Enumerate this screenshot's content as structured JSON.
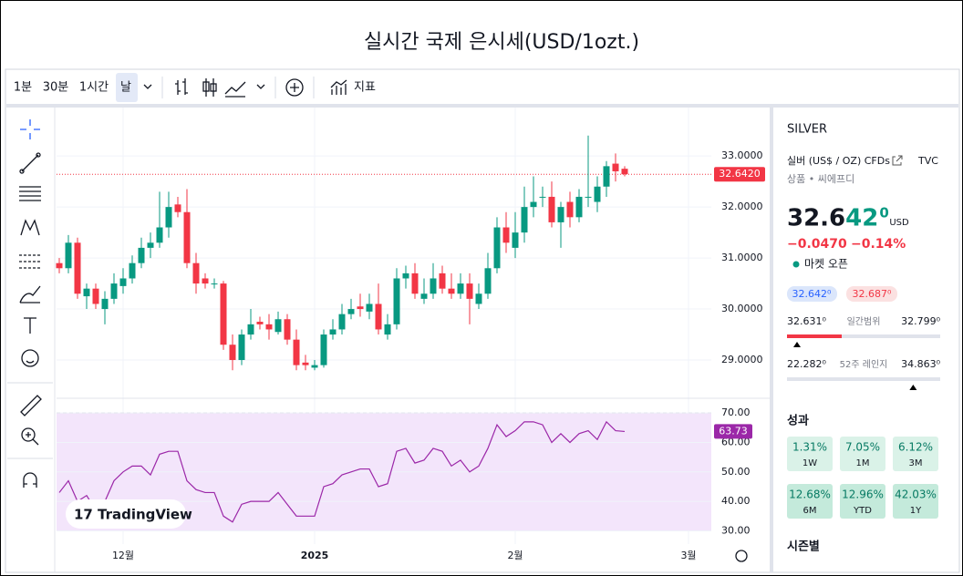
{
  "header": {
    "title": "실시간 국제 은시세(USD/1ozt.)"
  },
  "toolbar": {
    "intervals": [
      "1분",
      "30분",
      "1시간",
      "날"
    ],
    "indicators": "지표"
  },
  "chart_data": [
    {
      "type": "candlestick",
      "open": [
        30.9,
        30.8,
        31.3,
        30.25,
        30.4,
        30.0,
        30.2,
        30.45,
        30.6,
        30.9,
        31.2,
        31.3,
        31.6,
        32.05,
        31.9,
        30.9,
        30.6,
        30.5,
        30.5,
        29.3,
        29.0,
        29.5,
        29.75,
        29.7,
        29.55,
        29.8,
        29.4,
        28.95,
        28.85,
        28.9,
        29.5,
        29.6,
        29.9,
        30.05,
        29.95,
        30.1,
        29.5,
        29.7,
        30.6,
        30.7,
        30.2,
        30.3,
        30.7,
        30.4,
        30.3,
        30.5,
        30.1,
        30.3,
        30.8,
        31.6,
        31.2,
        31.5,
        32.0,
        32.2,
        32.2,
        31.7,
        32.1,
        31.8,
        32.2,
        32.1,
        32.4,
        32.85,
        32.75
      ],
      "high": [
        31.0,
        31.45,
        31.4,
        30.5,
        30.5,
        30.35,
        30.7,
        30.8,
        31.05,
        31.4,
        31.5,
        32.3,
        32.3,
        32.2,
        32.35,
        31.1,
        30.7,
        30.6,
        30.55,
        29.5,
        29.6,
        30.0,
        29.85,
        29.9,
        29.95,
        29.9,
        29.6,
        29.1,
        29.0,
        29.6,
        29.8,
        30.1,
        30.2,
        30.3,
        30.3,
        30.5,
        29.9,
        30.8,
        30.85,
        30.9,
        30.6,
        30.9,
        30.85,
        30.7,
        30.7,
        30.7,
        30.5,
        31.1,
        31.8,
        31.9,
        31.9,
        32.4,
        32.6,
        32.4,
        32.5,
        32.1,
        32.3,
        32.35,
        33.4,
        32.6,
        32.9,
        33.05,
        32.8
      ],
      "low": [
        30.7,
        30.7,
        30.2,
        30.0,
        30.0,
        29.7,
        30.1,
        30.3,
        30.5,
        30.8,
        31.0,
        31.2,
        31.4,
        31.8,
        30.8,
        30.3,
        30.4,
        30.4,
        29.2,
        28.8,
        28.9,
        29.4,
        29.6,
        29.4,
        29.5,
        29.3,
        28.8,
        28.8,
        28.8,
        28.85,
        29.4,
        29.5,
        29.8,
        29.85,
        29.8,
        29.5,
        29.4,
        29.6,
        30.4,
        30.2,
        30.1,
        30.2,
        30.3,
        30.2,
        30.2,
        29.7,
        30.0,
        30.2,
        30.7,
        31.1,
        31.0,
        31.3,
        31.8,
        32.0,
        31.6,
        31.2,
        31.6,
        31.7,
        32.0,
        31.9,
        32.2,
        32.5,
        32.6
      ],
      "close": [
        30.8,
        31.3,
        30.3,
        30.4,
        30.1,
        30.2,
        30.5,
        30.6,
        30.9,
        31.2,
        31.3,
        31.6,
        32.0,
        31.9,
        30.9,
        30.5,
        30.5,
        30.5,
        29.3,
        29.0,
        29.5,
        29.7,
        29.7,
        29.6,
        29.8,
        29.4,
        28.9,
        28.9,
        28.9,
        29.5,
        29.6,
        29.9,
        30.0,
        30.0,
        30.1,
        29.6,
        29.7,
        30.6,
        30.7,
        30.3,
        30.3,
        30.6,
        30.4,
        30.3,
        30.5,
        30.2,
        30.3,
        30.8,
        31.6,
        31.3,
        31.5,
        32.0,
        32.1,
        32.2,
        31.7,
        32.0,
        31.8,
        32.2,
        32.2,
        32.4,
        32.8,
        32.7,
        32.642
      ],
      "up_color": "#089981",
      "down_color": "#f23645",
      "xlim": [
        -0.3,
        71.5
      ],
      "ylim": [
        28.25,
        33.95
      ],
      "yticks": [
        {
          "value": 29,
          "label": "29.0000"
        },
        {
          "value": 30,
          "label": "30.0000"
        },
        {
          "value": 31,
          "label": "31.0000"
        },
        {
          "value": 32,
          "label": "32.0000"
        },
        {
          "value": 33,
          "label": "33.0000"
        }
      ],
      "xticks": [
        {
          "value": 7,
          "label": "12월"
        },
        {
          "value": 28,
          "label": "2025"
        },
        {
          "value": 50,
          "label": "2월"
        },
        {
          "value": 69,
          "label": "3월"
        }
      ],
      "price_line": {
        "value": 32.642,
        "label": "32.6420",
        "color": "#f23645"
      },
      "grid": true
    },
    {
      "type": "line",
      "values": [
        43,
        47,
        40,
        42,
        37,
        40,
        47,
        50,
        52,
        52,
        49,
        56,
        57,
        57,
        47,
        44,
        43,
        43,
        35,
        33,
        39,
        40,
        40,
        40,
        43,
        39,
        35,
        35,
        35,
        45,
        46,
        49,
        50,
        51,
        51,
        45,
        46,
        57,
        58,
        53,
        54,
        58,
        57,
        52,
        54,
        50,
        52,
        58,
        66,
        62,
        64,
        67,
        67,
        66,
        60,
        63,
        60,
        63,
        64,
        61,
        67,
        64,
        63.73
      ],
      "color": "#9b27a8",
      "xlim": [
        -0.3,
        71.5
      ],
      "ylim": [
        25.5,
        75
      ],
      "yticks": [
        {
          "value": 70,
          "label": "70.00"
        },
        {
          "value": 60,
          "label": "60.00"
        },
        {
          "value": 50,
          "label": "50.00"
        },
        {
          "value": 40,
          "label": "40.00"
        },
        {
          "value": 30,
          "label": "30.00"
        }
      ],
      "band": [
        30,
        70
      ],
      "last_value_label": "63.73",
      "grid": true
    }
  ],
  "watermark": "TradingView",
  "sidebar": {
    "symbol": "SILVER",
    "description": "실버 (US$ / OZ) CFDs",
    "exchange": "TVC",
    "category": "상품 • 씨에프디",
    "price": {
      "black": "32.6",
      "green": "42",
      "sup": "0",
      "currency": "USD"
    },
    "change": "−0.0470",
    "change_pct": "−0.14%",
    "status": "마켓 오픈",
    "bid": "32.642⁰",
    "ask": "32.687⁰",
    "day_range": {
      "low": "32.631⁰",
      "label": "일간범위",
      "high": "32.799⁰"
    },
    "week52": {
      "low": "22.282⁰",
      "label": "52주 레인지",
      "high": "34.863⁰"
    },
    "performance": {
      "title": "성과",
      "cells": [
        {
          "value": "1.31%",
          "period": "1W"
        },
        {
          "value": "7.05%",
          "period": "1M"
        },
        {
          "value": "6.12%",
          "period": "3M"
        },
        {
          "value": "12.68%",
          "period": "6M"
        },
        {
          "value": "12.96%",
          "period": "YTD"
        },
        {
          "value": "42.03%",
          "period": "1Y"
        }
      ]
    },
    "seasonal": "시즌별"
  }
}
